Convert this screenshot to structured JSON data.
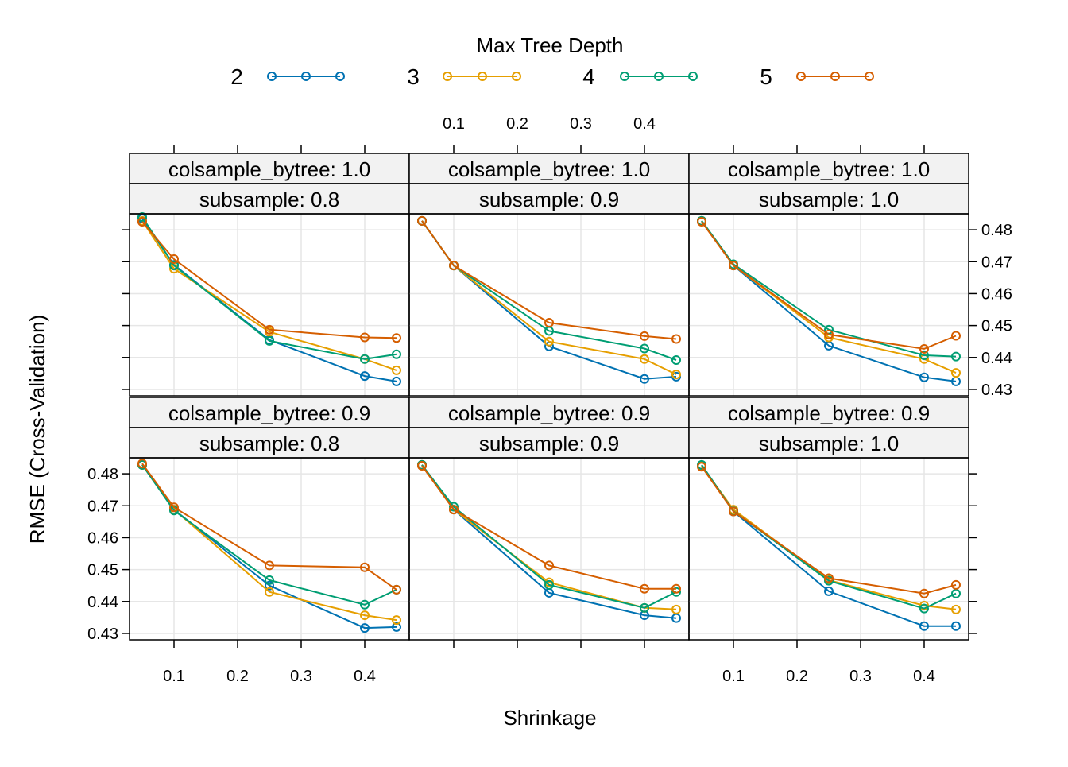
{
  "chart_data": {
    "type": "line",
    "legend": {
      "title": "Max Tree Depth",
      "placement": "top",
      "entries": [
        {
          "label": "2",
          "color": "#0072B2"
        },
        {
          "label": "3",
          "color": "#E69F00"
        },
        {
          "label": "4",
          "color": "#009E73"
        },
        {
          "label": "5",
          "color": "#D55E00"
        }
      ]
    },
    "xlabel": "Shrinkage",
    "ylabel": "RMSE (Cross-Validation)",
    "x": [
      0.05,
      0.1,
      0.25,
      0.4,
      0.45
    ],
    "xlim": [
      0.03,
      0.47
    ],
    "ylim": [
      0.428,
      0.485
    ],
    "x_ticks": [
      0.1,
      0.2,
      0.3,
      0.4
    ],
    "x_tick_labels": [
      "0.1",
      "0.2",
      "0.3",
      "0.4"
    ],
    "y_ticks": [
      0.43,
      0.44,
      0.45,
      0.46,
      0.47,
      0.48
    ],
    "y_tick_labels": [
      "0.43",
      "0.44",
      "0.45",
      "0.46",
      "0.47",
      "0.48"
    ],
    "grid": true,
    "panels": [
      {
        "strip_top": "colsample_bytree: 1.0",
        "strip_bottom": "subsample: 0.8",
        "series": [
          {
            "name": "2",
            "values": [
              0.4835,
              0.469,
              0.4455,
              0.4342,
              0.4325
            ]
          },
          {
            "name": "3",
            "values": [
              0.4828,
              0.4678,
              0.448,
              0.4395,
              0.436
            ]
          },
          {
            "name": "4",
            "values": [
              0.484,
              0.4688,
              0.4452,
              0.4395,
              0.441
            ]
          },
          {
            "name": "5",
            "values": [
              0.4825,
              0.4708,
              0.4487,
              0.4463,
              0.4461
            ]
          }
        ]
      },
      {
        "strip_top": "colsample_bytree: 1.0",
        "strip_bottom": "subsample: 0.9",
        "series": [
          {
            "name": "2",
            "values": [
              0.4828,
              0.4688,
              0.4435,
              0.4333,
              0.434
            ]
          },
          {
            "name": "3",
            "values": [
              0.4828,
              0.4688,
              0.445,
              0.4395,
              0.4347
            ]
          },
          {
            "name": "4",
            "values": [
              0.4828,
              0.4688,
              0.4483,
              0.4428,
              0.4392
            ]
          },
          {
            "name": "5",
            "values": [
              0.4828,
              0.4688,
              0.4509,
              0.4467,
              0.4458
            ]
          }
        ]
      },
      {
        "strip_top": "colsample_bytree: 1.0",
        "strip_bottom": "subsample: 1.0",
        "series": [
          {
            "name": "2",
            "values": [
              0.4828,
              0.4688,
              0.4437,
              0.4338,
              0.4325
            ]
          },
          {
            "name": "3",
            "values": [
              0.4828,
              0.4688,
              0.4463,
              0.4395,
              0.4352
            ]
          },
          {
            "name": "4",
            "values": [
              0.4828,
              0.4692,
              0.4487,
              0.4407,
              0.4403
            ]
          },
          {
            "name": "5",
            "values": [
              0.4825,
              0.4688,
              0.4472,
              0.4427,
              0.4468
            ]
          }
        ]
      },
      {
        "strip_top": "colsample_bytree: 0.9",
        "strip_bottom": "subsample: 0.8",
        "series": [
          {
            "name": "2",
            "values": [
              0.4828,
              0.4688,
              0.445,
              0.4317,
              0.432
            ]
          },
          {
            "name": "3",
            "values": [
              0.4828,
              0.4688,
              0.443,
              0.4357,
              0.4342
            ]
          },
          {
            "name": "4",
            "values": [
              0.4828,
              0.4685,
              0.4467,
              0.439,
              0.4437
            ]
          },
          {
            "name": "5",
            "values": [
              0.4832,
              0.4695,
              0.4513,
              0.4507,
              0.4437
            ]
          }
        ]
      },
      {
        "strip_top": "colsample_bytree: 0.9",
        "strip_bottom": "subsample: 0.9",
        "series": [
          {
            "name": "2",
            "values": [
              0.4828,
              0.4688,
              0.4427,
              0.4357,
              0.4348
            ]
          },
          {
            "name": "3",
            "values": [
              0.4828,
              0.4688,
              0.446,
              0.438,
              0.4375
            ]
          },
          {
            "name": "4",
            "values": [
              0.4828,
              0.4697,
              0.4452,
              0.438,
              0.443
            ]
          },
          {
            "name": "5",
            "values": [
              0.4825,
              0.4688,
              0.4513,
              0.444,
              0.444
            ]
          }
        ]
      },
      {
        "strip_top": "colsample_bytree: 0.9",
        "strip_bottom": "subsample: 1.0",
        "series": [
          {
            "name": "2",
            "values": [
              0.4825,
              0.4682,
              0.4432,
              0.4323,
              0.4323
            ]
          },
          {
            "name": "3",
            "values": [
              0.4825,
              0.4688,
              0.4467,
              0.4387,
              0.4375
            ]
          },
          {
            "name": "4",
            "values": [
              0.4828,
              0.4683,
              0.4465,
              0.4378,
              0.4425
            ]
          },
          {
            "name": "5",
            "values": [
              0.4822,
              0.4682,
              0.4473,
              0.4425,
              0.4452
            ]
          }
        ]
      }
    ]
  }
}
